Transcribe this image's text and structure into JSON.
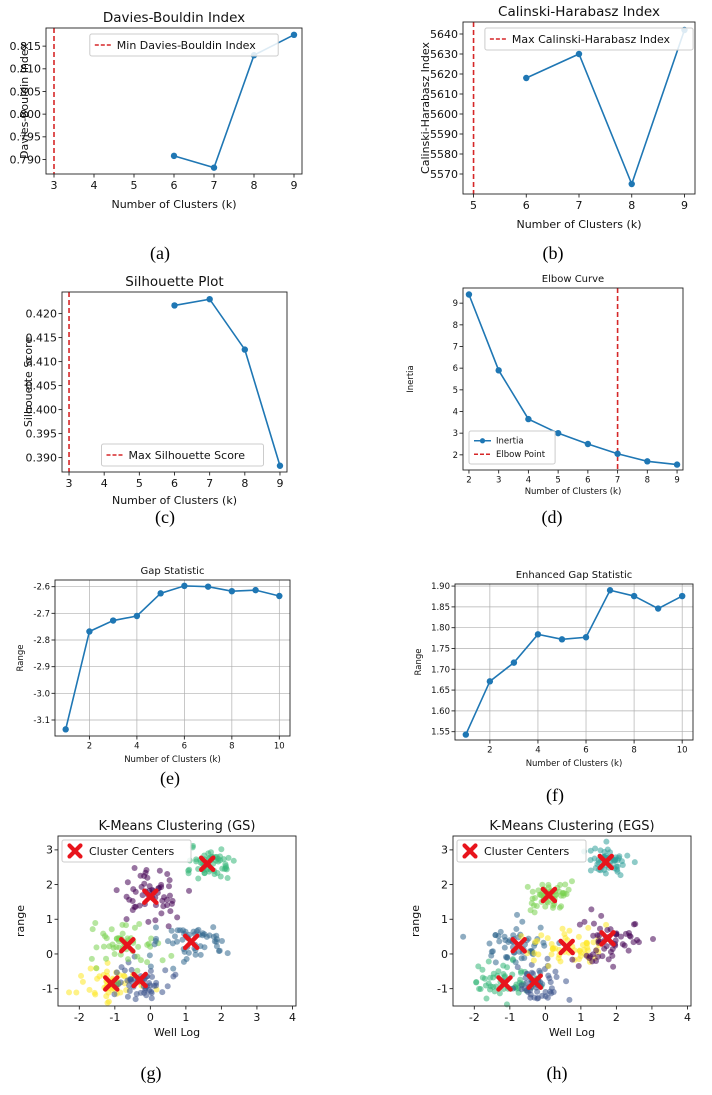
{
  "figure": {
    "captions": [
      "(a)",
      "(b)",
      "(c)",
      "(d)",
      "(e)",
      "(f)",
      "(g)",
      "(h)"
    ]
  },
  "colors": {
    "line": "#1f77b4",
    "vline": "#d62728",
    "grid": "#b0b0b0",
    "centers": "#e8141c",
    "viridis": [
      "#440154",
      "#31688e",
      "#35b779",
      "#7ad151",
      "#fde725",
      "#3b528b"
    ]
  },
  "chart_data": [
    {
      "id": "a",
      "type": "line",
      "title": "Davies-Bouldin Index",
      "xlabel": "Number of Clusters (k)",
      "ylabel": "Davies-Bouldin Index",
      "x": [
        6,
        7,
        8,
        9
      ],
      "y": [
        0.7908,
        0.7882,
        0.813,
        0.8175
      ],
      "xlim": [
        2.8,
        9.2
      ],
      "ylim": [
        0.7868,
        0.819
      ],
      "xticks": [
        3,
        4,
        5,
        6,
        7,
        8,
        9
      ],
      "yticks": [
        0.79,
        0.795,
        0.8,
        0.805,
        0.81,
        0.815
      ],
      "ytick_labels": [
        "0.790",
        "0.795",
        "0.800",
        "0.805",
        "0.810",
        "0.815"
      ],
      "vline": 3,
      "legend": [
        "Min Davies-Bouldin Index"
      ],
      "legend_loc": "top-center",
      "grid": false
    },
    {
      "id": "b",
      "type": "line",
      "title": "Calinski-Harabasz Index",
      "xlabel": "Number of Clusters (k)",
      "ylabel": "Calinski-Harabasz Index",
      "x": [
        6,
        7,
        8,
        9
      ],
      "y": [
        5618,
        5630,
        5565,
        5642
      ],
      "xlim": [
        4.8,
        9.2
      ],
      "ylim": [
        5560,
        5646
      ],
      "xticks": [
        5,
        6,
        7,
        8,
        9
      ],
      "yticks": [
        5570,
        5580,
        5590,
        5600,
        5610,
        5620,
        5630,
        5640
      ],
      "ytick_labels": [
        "5570",
        "5580",
        "5590",
        "5600",
        "5610",
        "5620",
        "5630",
        "5640"
      ],
      "vline": 5,
      "legend": [
        "Max Calinski-Harabasz Index"
      ],
      "legend_loc": "top-center",
      "grid": false
    },
    {
      "id": "c",
      "type": "line",
      "title": "Silhouette Plot",
      "xlabel": "Number of Clusters (k)",
      "ylabel": "Silhouette Score",
      "x": [
        6,
        7,
        8,
        9
      ],
      "y": [
        0.4217,
        0.423,
        0.4125,
        0.3883
      ],
      "xlim": [
        2.8,
        9.2
      ],
      "ylim": [
        0.387,
        0.4245
      ],
      "xticks": [
        3,
        4,
        5,
        6,
        7,
        8,
        9
      ],
      "yticks": [
        0.39,
        0.395,
        0.4,
        0.405,
        0.41,
        0.415,
        0.42
      ],
      "ytick_labels": [
        "0.390",
        "0.395",
        "0.400",
        "0.405",
        "0.410",
        "0.415",
        "0.420"
      ],
      "vline": 3,
      "legend": [
        "Max Silhouette Score"
      ],
      "legend_loc": "bottom-center",
      "grid": false
    },
    {
      "id": "d",
      "type": "line",
      "title": "Elbow Curve",
      "xlabel": "Number of Clusters (k)",
      "ylabel": "Inertia",
      "x": [
        2,
        3,
        4,
        5,
        6,
        7,
        8,
        9
      ],
      "y": [
        9.4,
        5.9,
        3.65,
        3.0,
        2.5,
        2.05,
        1.7,
        1.55
      ],
      "xlim": [
        1.8,
        9.2
      ],
      "ylim": [
        1.3,
        9.7
      ],
      "xticks": [
        2,
        3,
        4,
        5,
        6,
        7,
        8,
        9
      ],
      "yticks": [
        2,
        3,
        4,
        5,
        6,
        7,
        8,
        9
      ],
      "ytick_labels": [
        "2",
        "3",
        "4",
        "5",
        "6",
        "7",
        "8",
        "9"
      ],
      "vline": 7,
      "legend": [
        "Inertia",
        "Elbow Point"
      ],
      "legend_loc": "bottom-left",
      "grid": false
    },
    {
      "id": "e",
      "type": "line",
      "title": "Gap Statistic",
      "xlabel": "Number of Clusters (k)",
      "ylabel": "Range",
      "x": [
        1,
        2,
        3,
        4,
        5,
        6,
        7,
        8,
        9,
        10
      ],
      "y": [
        -3.135,
        -2.768,
        -2.727,
        -2.71,
        -2.625,
        -2.597,
        -2.6,
        -2.617,
        -2.613,
        -2.635
      ],
      "xlim": [
        0.55,
        10.45
      ],
      "ylim": [
        -3.16,
        -2.575
      ],
      "xticks": [
        2,
        4,
        6,
        8,
        10
      ],
      "yticks": [
        -3.1,
        -3.0,
        -2.9,
        -2.8,
        -2.7,
        -2.6
      ],
      "ytick_labels": [
        "-3.1",
        "-3.0",
        "-2.9",
        "-2.8",
        "-2.7",
        "-2.6"
      ],
      "vline": null,
      "legend": [],
      "grid": true
    },
    {
      "id": "f",
      "type": "line",
      "title": "Enhanced Gap Statistic",
      "xlabel": "Number of Clusters (k)",
      "ylabel": "Range",
      "x": [
        1,
        2,
        3,
        4,
        5,
        6,
        7,
        8,
        9,
        10
      ],
      "y": [
        1.543,
        1.671,
        1.716,
        1.784,
        1.772,
        1.777,
        1.89,
        1.876,
        1.846,
        1.876
      ],
      "xlim": [
        0.55,
        10.45
      ],
      "ylim": [
        1.53,
        1.905
      ],
      "xticks": [
        2,
        4,
        6,
        8,
        10
      ],
      "yticks": [
        1.55,
        1.6,
        1.65,
        1.7,
        1.75,
        1.8,
        1.85,
        1.9
      ],
      "ytick_labels": [
        "1.55",
        "1.60",
        "1.65",
        "1.70",
        "1.75",
        "1.80",
        "1.85",
        "1.90"
      ],
      "vline": null,
      "legend": [],
      "grid": true
    },
    {
      "id": "g",
      "type": "scatter",
      "title": "K-Means Clustering (GS)",
      "xlabel": "Well Log",
      "ylabel": "range",
      "xlim": [
        -2.6,
        4.1
      ],
      "ylim": [
        -1.5,
        3.4
      ],
      "xticks": [
        -2,
        -1,
        0,
        1,
        2,
        3,
        4
      ],
      "yticks": [
        -1,
        0,
        1,
        2,
        3
      ],
      "ytick_labels": [
        "-1",
        "0",
        "1",
        "2",
        "3"
      ],
      "legend": [
        "Cluster Centers"
      ],
      "legend_loc": "top-left",
      "grid": false,
      "centers": [
        [
          -1.1,
          -0.85
        ],
        [
          -0.3,
          -0.75
        ],
        [
          -0.65,
          0.25
        ],
        [
          1.15,
          0.35
        ],
        [
          0.0,
          1.65
        ],
        [
          1.6,
          2.6
        ]
      ],
      "cluster_colors": [
        "#fde725",
        "#3b528b",
        "#7ad151",
        "#31688e",
        "#440154",
        "#35b779"
      ]
    },
    {
      "id": "h",
      "type": "scatter",
      "title": "K-Means Clustering (EGS)",
      "xlabel": "Well Log",
      "ylabel": "range",
      "xlim": [
        -2.6,
        4.1
      ],
      "ylim": [
        -1.5,
        3.4
      ],
      "xticks": [
        -2,
        -1,
        0,
        1,
        2,
        3,
        4
      ],
      "yticks": [
        -1,
        0,
        1,
        2,
        3
      ],
      "ytick_labels": [
        "-1",
        "0",
        "1",
        "2",
        "3"
      ],
      "legend": [
        "Cluster Centers"
      ],
      "legend_loc": "top-left",
      "grid": false,
      "centers": [
        [
          -1.15,
          -0.85
        ],
        [
          -0.3,
          -0.8
        ],
        [
          -0.75,
          0.25
        ],
        [
          0.6,
          0.2
        ],
        [
          1.75,
          0.45
        ],
        [
          0.1,
          1.7
        ],
        [
          1.7,
          2.65
        ]
      ],
      "cluster_colors": [
        "#35b779",
        "#3b528b",
        "#31688e",
        "#fde725",
        "#440154",
        "#7ad151",
        "#31a09a"
      ]
    }
  ]
}
